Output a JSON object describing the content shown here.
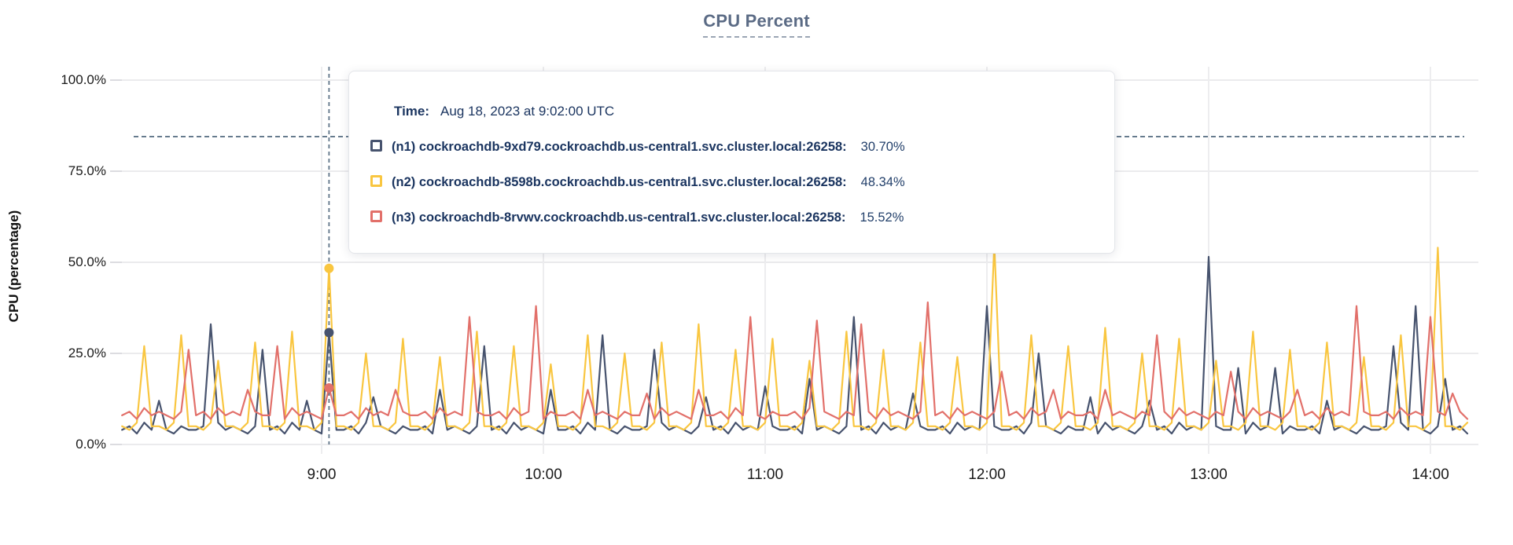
{
  "title": "CPU Percent",
  "axes": {
    "y_label": "CPU (percentage)",
    "y_ticks": [
      "100.0%",
      "75.0%",
      "50.0%",
      "25.0%",
      "0.0%"
    ],
    "x_ticks": [
      "9:00",
      "10:00",
      "11:00",
      "12:00",
      "13:00",
      "14:00"
    ]
  },
  "tooltip": {
    "time_label": "Time:",
    "time_value": "Aug 18, 2023 at 9:02:00 UTC",
    "rows": [
      {
        "name": "(n1) cockroachdb-9xd79.cockroachdb.us-central1.svc.cluster.local:26258:",
        "value": "30.70%",
        "color": "#47536e"
      },
      {
        "name": "(n2) cockroachdb-8598b.cockroachdb.us-central1.svc.cluster.local:26258:",
        "value": "48.34%",
        "color": "#f9c640"
      },
      {
        "name": "(n3) cockroachdb-8rvwv.cockroachdb.us-central1.svc.cluster.local:26258:",
        "value": "15.52%",
        "color": "#e2706a"
      }
    ]
  },
  "colors": {
    "grid": "#ebebed",
    "hour_grid": "#ededef",
    "tick": "#dcdce0",
    "crosshair": "#5f7488",
    "title": "#5b6b85",
    "tooltip_text": "#1b3560"
  },
  "chart_data": {
    "type": "line",
    "title": "CPU Percent",
    "xlabel": "",
    "ylabel": "CPU (percentage)",
    "ylim": [
      0,
      100
    ],
    "grid": true,
    "legend_position": "tooltip-overlay",
    "x_start_min": 486,
    "x_step_min": 2,
    "x_hour_ticks_min": [
      540,
      600,
      660,
      720,
      780,
      840
    ],
    "x_tick_labels": [
      "9:00",
      "10:00",
      "11:00",
      "12:00",
      "13:00",
      "14:00"
    ],
    "hover": {
      "time_min": 542,
      "time_label": "Aug 18, 2023 at 9:02:00 UTC",
      "crosshair_y_pct": 84.5,
      "values": [
        30.7,
        48.34,
        15.52
      ]
    },
    "series": [
      {
        "name": "(n1) cockroachdb-9xd79.cockroachdb.us-central1.svc.cluster.local:26258",
        "color": "#47536e",
        "values": [
          4,
          5,
          3,
          6,
          4,
          12,
          4,
          3,
          5,
          4,
          4,
          5,
          33,
          6,
          4,
          5,
          4,
          3,
          5,
          26,
          4,
          5,
          3,
          6,
          4,
          12,
          4,
          3,
          30.7,
          4,
          4,
          5,
          3,
          6,
          13,
          5,
          4,
          3,
          5,
          4,
          4,
          5,
          3,
          15,
          4,
          5,
          4,
          3,
          5,
          27,
          4,
          5,
          3,
          6,
          4,
          5,
          4,
          3,
          15,
          4,
          4,
          5,
          3,
          6,
          4,
          30,
          4,
          3,
          5,
          4,
          4,
          5,
          26,
          6,
          4,
          5,
          4,
          3,
          5,
          13,
          4,
          5,
          3,
          6,
          4,
          5,
          4,
          16,
          5,
          4,
          4,
          5,
          3,
          18,
          4,
          5,
          4,
          3,
          5,
          35,
          4,
          5,
          3,
          6,
          4,
          5,
          4,
          14,
          5,
          4,
          4,
          5,
          3,
          6,
          4,
          5,
          4,
          38,
          5,
          4,
          4,
          5,
          3,
          6,
          25,
          5,
          4,
          3,
          5,
          4,
          4,
          13,
          3,
          6,
          4,
          5,
          4,
          3,
          5,
          12,
          4,
          5,
          3,
          6,
          4,
          5,
          4,
          51.5,
          5,
          4,
          4,
          21,
          3,
          6,
          4,
          5,
          21,
          3,
          5,
          4,
          4,
          5,
          3,
          12,
          4,
          5,
          4,
          3,
          5,
          4,
          4,
          5,
          27,
          6,
          4,
          38,
          4,
          3,
          5,
          18,
          4,
          5,
          3
        ]
      },
      {
        "name": "(n2) cockroachdb-8598b.cockroachdb.us-central1.svc.cluster.local:26258",
        "color": "#f9c640",
        "values": [
          5,
          4,
          6,
          27,
          5,
          5,
          4,
          6,
          30,
          5,
          5,
          4,
          6,
          23,
          5,
          5,
          4,
          6,
          28,
          5,
          5,
          4,
          6,
          31,
          5,
          5,
          4,
          6,
          48.34,
          5,
          5,
          4,
          6,
          25,
          5,
          5,
          4,
          6,
          29,
          5,
          5,
          4,
          6,
          24,
          5,
          5,
          4,
          6,
          31,
          5,
          5,
          4,
          6,
          27,
          5,
          5,
          4,
          6,
          22,
          5,
          5,
          4,
          6,
          30,
          5,
          5,
          4,
          6,
          25,
          5,
          5,
          4,
          6,
          28,
          5,
          5,
          4,
          6,
          33,
          5,
          5,
          4,
          6,
          26,
          5,
          5,
          4,
          6,
          29,
          5,
          5,
          4,
          6,
          23,
          5,
          5,
          4,
          6,
          31,
          5,
          5,
          4,
          6,
          26,
          5,
          5,
          4,
          6,
          28,
          5,
          5,
          4,
          6,
          24,
          5,
          5,
          4,
          6,
          55,
          5,
          5,
          4,
          6,
          30,
          5,
          5,
          4,
          6,
          27,
          5,
          5,
          4,
          6,
          32,
          5,
          5,
          4,
          6,
          25,
          5,
          5,
          4,
          6,
          29,
          5,
          5,
          4,
          6,
          23,
          5,
          5,
          4,
          6,
          31,
          5,
          5,
          4,
          6,
          26,
          5,
          5,
          4,
          6,
          28,
          5,
          5,
          4,
          6,
          24,
          5,
          5,
          4,
          6,
          30,
          5,
          5,
          4,
          6,
          54,
          5,
          5,
          4,
          6
        ]
      },
      {
        "name": "(n3) cockroachdb-8rvwv.cockroachdb.us-central1.svc.cluster.local:26258",
        "color": "#e2706a",
        "values": [
          8,
          9,
          7,
          10,
          8,
          9,
          8,
          7,
          9,
          26,
          8,
          9,
          7,
          10,
          8,
          9,
          8,
          15,
          9,
          8,
          8,
          27,
          7,
          10,
          8,
          9,
          8,
          7,
          15.52,
          8,
          8,
          9,
          7,
          10,
          8,
          9,
          8,
          15,
          9,
          8,
          8,
          9,
          7,
          10,
          8,
          9,
          8,
          35,
          9,
          8,
          8,
          9,
          7,
          10,
          8,
          9,
          38,
          7,
          9,
          8,
          8,
          9,
          7,
          15,
          8,
          9,
          8,
          7,
          9,
          8,
          8,
          14,
          7,
          10,
          8,
          9,
          8,
          7,
          15,
          8,
          8,
          9,
          7,
          10,
          8,
          35,
          8,
          7,
          9,
          8,
          8,
          9,
          7,
          10,
          34,
          9,
          8,
          7,
          9,
          8,
          33,
          9,
          7,
          10,
          8,
          9,
          8,
          7,
          9,
          39,
          8,
          9,
          7,
          10,
          8,
          9,
          8,
          7,
          9,
          20,
          8,
          9,
          7,
          10,
          8,
          9,
          15,
          7,
          9,
          8,
          8,
          9,
          7,
          15,
          8,
          9,
          8,
          7,
          9,
          8,
          30,
          9,
          7,
          10,
          8,
          9,
          8,
          7,
          9,
          8,
          20,
          9,
          7,
          10,
          8,
          9,
          8,
          7,
          9,
          15,
          8,
          9,
          7,
          10,
          8,
          9,
          8,
          38,
          9,
          8,
          8,
          9,
          7,
          10,
          8,
          9,
          8,
          35,
          9,
          8,
          14,
          9,
          7
        ]
      }
    ]
  }
}
